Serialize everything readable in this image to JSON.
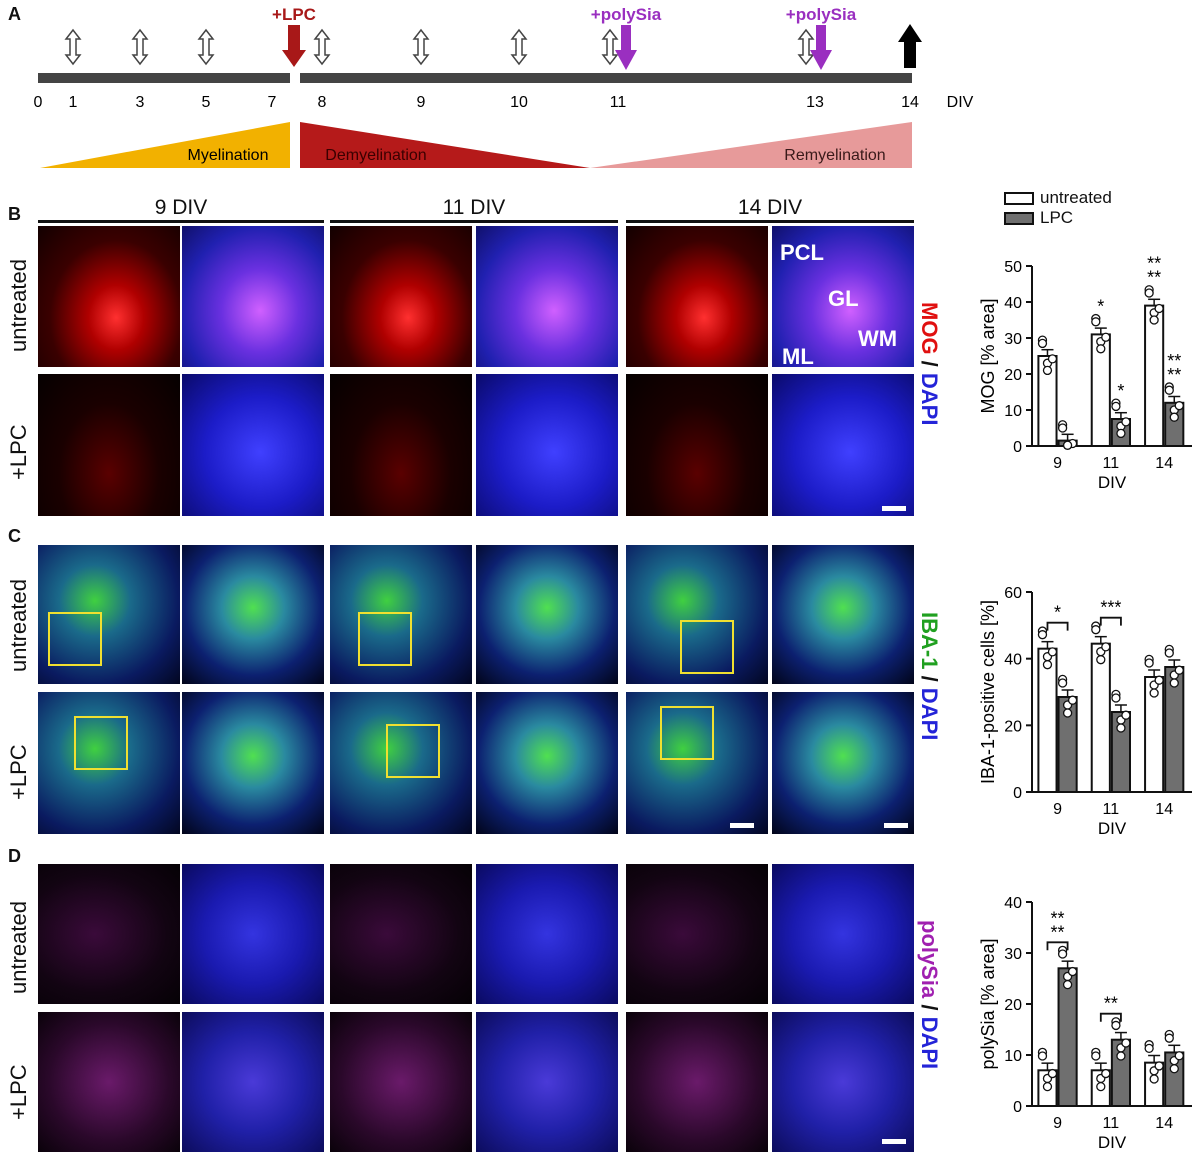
{
  "panels": {
    "a": "A",
    "b": "B",
    "c": "C",
    "d": "D"
  },
  "timeline": {
    "ticks": [
      "0",
      "1",
      "3",
      "5",
      "7",
      "8",
      "9",
      "10",
      "11",
      "13",
      "14"
    ],
    "unit": "DIV",
    "lpc_label": "+LPC",
    "polysia_label_1": "+polySia",
    "polysia_label_2": "+polySia",
    "phases": {
      "myelination": "Myelination",
      "demyelination": "Demyelination",
      "remyelination": "Remyelination"
    },
    "colors": {
      "lpc": "#a81818",
      "polysia": "#9a2fc0",
      "myelination": "#f2b100",
      "demyelination": "#b51a1a",
      "remyelination": "#e79a9a"
    }
  },
  "column_headers": [
    "9 DIV",
    "11 DIV",
    "14 DIV"
  ],
  "conditions": {
    "untreated": "untreated",
    "lpc": "+LPC"
  },
  "stains": {
    "b": {
      "marker": "MOG",
      "sep": " / ",
      "counter": "DAPI"
    },
    "c": {
      "marker": "IBA-1",
      "sep": " / ",
      "counter": "DAPI"
    },
    "d": {
      "marker": "polySia",
      "sep": " / ",
      "counter": "DAPI"
    }
  },
  "region_labels": {
    "pcl": "PCL",
    "gl": "GL",
    "wm": "WM",
    "ml": "ML"
  },
  "legend": {
    "untreated": "untreated",
    "lpc": "LPC"
  },
  "chart_data": [
    {
      "type": "bar",
      "categories": [
        "9",
        "11",
        "14"
      ],
      "xlabel": "DIV",
      "ylabel": "MOG [% area]",
      "ylim": [
        0,
        50
      ],
      "yticks": [
        0,
        10,
        20,
        30,
        40,
        50
      ],
      "series": [
        {
          "name": "untreated",
          "values": [
            25,
            31,
            39
          ]
        },
        {
          "name": "LPC",
          "values": [
            1.5,
            7.5,
            12
          ]
        }
      ],
      "annotations": [
        {
          "category": "11",
          "series": "untreated",
          "lines": [
            "*"
          ]
        },
        {
          "category": "11",
          "series": "LPC",
          "lines": [
            "*"
          ]
        },
        {
          "category": "14",
          "series": "untreated",
          "lines": [
            "**",
            "**"
          ]
        },
        {
          "category": "14",
          "series": "LPC",
          "lines": [
            "**",
            "**"
          ]
        }
      ]
    },
    {
      "type": "bar",
      "categories": [
        "9",
        "11",
        "14"
      ],
      "xlabel": "DIV",
      "ylabel": "IBA-1-positive cells [%]",
      "ylim": [
        0,
        60
      ],
      "yticks": [
        0,
        20,
        40,
        60
      ],
      "series": [
        {
          "name": "untreated",
          "values": [
            43,
            44.5,
            34.5
          ]
        },
        {
          "name": "LPC",
          "values": [
            28.5,
            24,
            37.5
          ]
        }
      ],
      "annotations": [
        {
          "category": "9",
          "bracket": true,
          "lines": [
            "*"
          ]
        },
        {
          "category": "11",
          "bracket": true,
          "lines": [
            "***"
          ]
        }
      ]
    },
    {
      "type": "bar",
      "categories": [
        "9",
        "11",
        "14"
      ],
      "xlabel": "DIV",
      "ylabel": "polySia [% area]",
      "ylim": [
        0,
        40
      ],
      "yticks": [
        0,
        10,
        20,
        30,
        40
      ],
      "series": [
        {
          "name": "untreated",
          "values": [
            7,
            7,
            8.5
          ]
        },
        {
          "name": "LPC",
          "values": [
            27,
            13,
            10.5
          ]
        }
      ],
      "annotations": [
        {
          "category": "9",
          "bracket": true,
          "lines": [
            "**",
            "**"
          ]
        },
        {
          "category": "11",
          "bracket": true,
          "lines": [
            "**"
          ]
        }
      ]
    }
  ]
}
